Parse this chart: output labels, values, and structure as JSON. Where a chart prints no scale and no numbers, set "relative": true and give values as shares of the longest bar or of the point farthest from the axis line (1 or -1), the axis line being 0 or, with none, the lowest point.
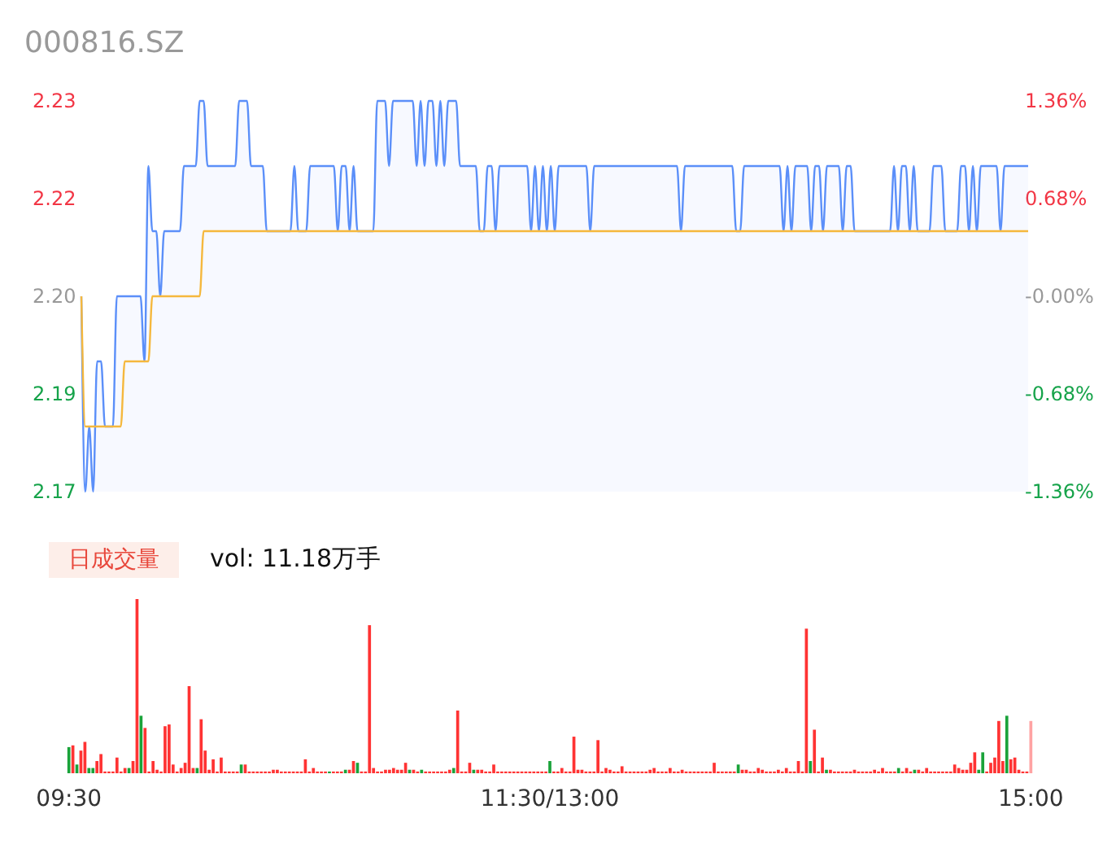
{
  "chart_data": [
    {
      "type": "line",
      "title": "000816.SZ",
      "categories": [
        null,
        null,
        null,
        null,
        null,
        null,
        null,
        null,
        null,
        null,
        null,
        null,
        null,
        null,
        null,
        null,
        null,
        null,
        null,
        null,
        null,
        null,
        null,
        null,
        null,
        null,
        null,
        null,
        null,
        null,
        null,
        null,
        null,
        null,
        null,
        null,
        null,
        null,
        null,
        null,
        null,
        null,
        null,
        null,
        null,
        null,
        null,
        null,
        null,
        null,
        null,
        null,
        null,
        null,
        null,
        null,
        null,
        null,
        null,
        null,
        null,
        null,
        null,
        null,
        null,
        null,
        null,
        null,
        null,
        null,
        null,
        null,
        null,
        null,
        null,
        null,
        null,
        null,
        null,
        null,
        null,
        null,
        null,
        null,
        null,
        null,
        null,
        null,
        null,
        null,
        null,
        null,
        null,
        null,
        null,
        null,
        null,
        null,
        null,
        null,
        null,
        null,
        null,
        null,
        null,
        null,
        null,
        null,
        null,
        null,
        null,
        null,
        null,
        null,
        null,
        null,
        null,
        null,
        null,
        null,
        null,
        null,
        null,
        null,
        null,
        null,
        null,
        null,
        null,
        null,
        null,
        null,
        null,
        null,
        null,
        null,
        null,
        null,
        null,
        null,
        null,
        null,
        null,
        null,
        null,
        null,
        null,
        null,
        null,
        null,
        null,
        null,
        null,
        null,
        null,
        null,
        null,
        null,
        null,
        null,
        null,
        null,
        null,
        null,
        null,
        null,
        null,
        null,
        null,
        null,
        null,
        null,
        null,
        null,
        null,
        null,
        null,
        null,
        null,
        null,
        null,
        null,
        null,
        null,
        null,
        null,
        null,
        null,
        null,
        null,
        null,
        null,
        null,
        null,
        null,
        null,
        null,
        null,
        null,
        null,
        null,
        null,
        null,
        null,
        null,
        null,
        null,
        null,
        null,
        null,
        null,
        null,
        null,
        null,
        null,
        null,
        null,
        null,
        null,
        null,
        null,
        null,
        null,
        null,
        null,
        null,
        null,
        null,
        null,
        null,
        null,
        null,
        null,
        null,
        null,
        null,
        null,
        null,
        null,
        null,
        null
      ],
      "series": [
        {
          "type": "area",
          "color": "#5b8ff9",
          "values": [
            2.2,
            2.17,
            2.18,
            2.17,
            2.19,
            2.19,
            2.18,
            2.18,
            2.18,
            2.2,
            2.2,
            2.2,
            2.2,
            2.2,
            2.2,
            2.2,
            2.19,
            2.22,
            2.21,
            2.21,
            2.2,
            2.21,
            2.21,
            2.21,
            2.21,
            2.21,
            2.22,
            2.22,
            2.22,
            2.22,
            2.23,
            2.23,
            2.22,
            2.22,
            2.22,
            2.22,
            2.22,
            2.22,
            2.22,
            2.22,
            2.23,
            2.23,
            2.23,
            2.22,
            2.22,
            2.22,
            2.22,
            2.21,
            2.21,
            2.21,
            2.21,
            2.21,
            2.21,
            2.21,
            2.22,
            2.21,
            2.21,
            2.21,
            2.22,
            2.22,
            2.22,
            2.22,
            2.22,
            2.22,
            2.22,
            2.21,
            2.22,
            2.22,
            2.21,
            2.22,
            2.21,
            2.21,
            2.21,
            2.21,
            2.21,
            2.23,
            2.23,
            2.23,
            2.22,
            2.23,
            2.23,
            2.23,
            2.23,
            2.23,
            2.23,
            2.22,
            2.23,
            2.22,
            2.23,
            2.23,
            2.22,
            2.23,
            2.22,
            2.23,
            2.23,
            2.23,
            2.22,
            2.22,
            2.22,
            2.22,
            2.22,
            2.21,
            2.21,
            2.22,
            2.22,
            2.21,
            2.22,
            2.22,
            2.22,
            2.22,
            2.22,
            2.22,
            2.22,
            2.22,
            2.21,
            2.22,
            2.21,
            2.22,
            2.21,
            2.22,
            2.21,
            2.22,
            2.22,
            2.22,
            2.22,
            2.22,
            2.22,
            2.22,
            2.22,
            2.21,
            2.22,
            2.22,
            2.22,
            2.22,
            2.22,
            2.22,
            2.22,
            2.22,
            2.22,
            2.22,
            2.22,
            2.22,
            2.22,
            2.22,
            2.22,
            2.22,
            2.22,
            2.22,
            2.22,
            2.22,
            2.22,
            2.22,
            2.21,
            2.22,
            2.22,
            2.22,
            2.22,
            2.22,
            2.22,
            2.22,
            2.22,
            2.22,
            2.22,
            2.22,
            2.22,
            2.22,
            2.21,
            2.21,
            2.22,
            2.22,
            2.22,
            2.22,
            2.22,
            2.22,
            2.22,
            2.22,
            2.22,
            2.22,
            2.21,
            2.22,
            2.21,
            2.22,
            2.22,
            2.22,
            2.22,
            2.21,
            2.22,
            2.22,
            2.21,
            2.22,
            2.22,
            2.22,
            2.22,
            2.21,
            2.22,
            2.22,
            2.21,
            2.21,
            2.21,
            2.21,
            2.21,
            2.21,
            2.21,
            2.21,
            2.21,
            2.21,
            2.22,
            2.21,
            2.22,
            2.22,
            2.21,
            2.22,
            2.21,
            2.21,
            2.21,
            2.21,
            2.22,
            2.22,
            2.22,
            2.21,
            2.21,
            2.21,
            2.21,
            2.22,
            2.22,
            2.21,
            2.22,
            2.21,
            2.22,
            2.22,
            2.22,
            2.22,
            2.22,
            2.21,
            2.22,
            2.22,
            2.22,
            2.22,
            2.22,
            2.22,
            2.22
          ]
        },
        {
          "type": "line",
          "color": "#f5b83d",
          "values": [
            2.2,
            2.18,
            2.18,
            2.18,
            2.18,
            2.18,
            2.18,
            2.18,
            2.18,
            2.18,
            2.18,
            2.19,
            2.19,
            2.19,
            2.19,
            2.19,
            2.19,
            2.19,
            2.2,
            2.2,
            2.2,
            2.2,
            2.2,
            2.2,
            2.2,
            2.2,
            2.2,
            2.2,
            2.2,
            2.2,
            2.2,
            2.21,
            2.21,
            2.21,
            2.21,
            2.21,
            2.21,
            2.21,
            2.21,
            2.21,
            2.21,
            2.21,
            2.21,
            2.21,
            2.21,
            2.21,
            2.21,
            2.21,
            2.21,
            2.21,
            2.21,
            2.21,
            2.21,
            2.21,
            2.21,
            2.21,
            2.21,
            2.21,
            2.21,
            2.21,
            2.21,
            2.21,
            2.21,
            2.21,
            2.21,
            2.21,
            2.21,
            2.21,
            2.21,
            2.21,
            2.21,
            2.21,
            2.21,
            2.21,
            2.21,
            2.21,
            2.21,
            2.21,
            2.21,
            2.21,
            2.21,
            2.21,
            2.21,
            2.21,
            2.21,
            2.21,
            2.21,
            2.21,
            2.21,
            2.21,
            2.21,
            2.21,
            2.21,
            2.21,
            2.21,
            2.21,
            2.21,
            2.21,
            2.21,
            2.21,
            2.21,
            2.21,
            2.21,
            2.21,
            2.21,
            2.21,
            2.21,
            2.21,
            2.21,
            2.21,
            2.21,
            2.21,
            2.21,
            2.21,
            2.21,
            2.21,
            2.21,
            2.21,
            2.21,
            2.21,
            2.21,
            2.21,
            2.21,
            2.21,
            2.21,
            2.21,
            2.21,
            2.21,
            2.21,
            2.21,
            2.21,
            2.21,
            2.21,
            2.21,
            2.21,
            2.21,
            2.21,
            2.21,
            2.21,
            2.21,
            2.21,
            2.21,
            2.21,
            2.21,
            2.21,
            2.21,
            2.21,
            2.21,
            2.21,
            2.21,
            2.21,
            2.21,
            2.21,
            2.21,
            2.21,
            2.21,
            2.21,
            2.21,
            2.21,
            2.21,
            2.21,
            2.21,
            2.21,
            2.21,
            2.21,
            2.21,
            2.21,
            2.21,
            2.21,
            2.21,
            2.21,
            2.21,
            2.21,
            2.21,
            2.21,
            2.21,
            2.21,
            2.21,
            2.21,
            2.21,
            2.21,
            2.21,
            2.21,
            2.21,
            2.21,
            2.21,
            2.21,
            2.21,
            2.21,
            2.21,
            2.21,
            2.21,
            2.21,
            2.21,
            2.21,
            2.21,
            2.21,
            2.21,
            2.21,
            2.21,
            2.21,
            2.21,
            2.21,
            2.21,
            2.21,
            2.21,
            2.21,
            2.21,
            2.21,
            2.21,
            2.21,
            2.21,
            2.21,
            2.21,
            2.21,
            2.21,
            2.21,
            2.21,
            2.21,
            2.21,
            2.21,
            2.21,
            2.21,
            2.21,
            2.21,
            2.21,
            2.21,
            2.21,
            2.21,
            2.21,
            2.21,
            2.21,
            2.21,
            2.21,
            2.21,
            2.21,
            2.21,
            2.21,
            2.21,
            2.21,
            2.21
          ]
        }
      ],
      "ylim": [
        2.17,
        2.23
      ],
      "yticks": [
        2.23,
        {
          "value": 2.215,
          "label": "2.22"
        },
        {
          "value": 2.2,
          "label": "2.20"
        },
        {
          "value": 2.185,
          "label": "2.19"
        },
        2.17
      ],
      "y2lim": [
        -1.36,
        1.36
      ],
      "y2ticks": [
        {
          "value": 1.36,
          "label": "1.36%"
        },
        {
          "value": 0.68,
          "label": "0.68%"
        },
        {
          "value": 0,
          "label": "-0.00%"
        },
        {
          "value": -0.68,
          "label": "-0.68%"
        },
        {
          "value": -1.36,
          "label": "-1.36%"
        }
      ],
      "tick_labels": "y"
    },
    {
      "type": "bar",
      "title": "日成交量",
      "subtitle": "vol: 11.18万手",
      "relative": true,
      "categories": [
        "09:30",
        null,
        null,
        null,
        null,
        null,
        null,
        null,
        null,
        null,
        null,
        null,
        null,
        null,
        null,
        null,
        null,
        null,
        null,
        null,
        null,
        null,
        null,
        null,
        null,
        null,
        null,
        null,
        null,
        null,
        null,
        null,
        null,
        null,
        null,
        null,
        null,
        null,
        null,
        null,
        null,
        null,
        null,
        null,
        null,
        null,
        null,
        null,
        null,
        null,
        null,
        null,
        null,
        null,
        null,
        null,
        null,
        null,
        null,
        null,
        null,
        null,
        null,
        null,
        null,
        null,
        null,
        null,
        null,
        null,
        null,
        null,
        null,
        null,
        null,
        null,
        null,
        null,
        null,
        null,
        null,
        null,
        null,
        null,
        null,
        null,
        null,
        null,
        null,
        null,
        null,
        null,
        null,
        null,
        null,
        null,
        null,
        null,
        null,
        null,
        null,
        null,
        null,
        null,
        null,
        null,
        null,
        null,
        null,
        null,
        null,
        null,
        null,
        null,
        null,
        null,
        null,
        null,
        null,
        null,
        "11:30/13:00",
        null,
        null,
        null,
        null,
        null,
        null,
        null,
        null,
        null,
        null,
        null,
        null,
        null,
        null,
        null,
        null,
        null,
        null,
        null,
        null,
        null,
        null,
        null,
        null,
        null,
        null,
        null,
        null,
        null,
        null,
        null,
        null,
        null,
        null,
        null,
        null,
        null,
        null,
        null,
        null,
        null,
        null,
        null,
        null,
        null,
        null,
        null,
        null,
        null,
        null,
        null,
        null,
        null,
        null,
        null,
        null,
        null,
        null,
        null,
        null,
        null,
        null,
        null,
        null,
        null,
        null,
        null,
        null,
        null,
        null,
        null,
        null,
        null,
        null,
        null,
        null,
        null,
        null,
        null,
        null,
        null,
        null,
        null,
        null,
        null,
        null,
        null,
        null,
        null,
        null,
        null,
        null,
        null,
        null,
        null,
        null,
        null,
        null,
        null,
        null,
        null,
        null,
        null,
        null,
        null,
        null,
        null,
        null,
        null,
        null,
        null,
        null,
        null,
        null,
        null,
        null,
        null,
        null,
        null,
        "15:00"
      ],
      "values": [
        0.15,
        0.16,
        0.05,
        0.13,
        0.18,
        0.03,
        0.03,
        0.07,
        0.11,
        0.01,
        0.01,
        0.01,
        0.09,
        0.01,
        0.03,
        0.03,
        0.07,
        1,
        0.33,
        0.26,
        0.01,
        0.07,
        0.02,
        0.01,
        0.27,
        0.28,
        0.05,
        0.01,
        0.03,
        0.06,
        0.5,
        0.03,
        0.03,
        0.31,
        0.13,
        0.02,
        0.08,
        0.01,
        0.09,
        0.01,
        0.01,
        0.01,
        0.01,
        0.05,
        0.05,
        0.01,
        0.01,
        0.01,
        0.01,
        0.01,
        0.01,
        0.02,
        0.02,
        0.01,
        0.01,
        0.01,
        0.01,
        0.01,
        0.01,
        0.08,
        0.01,
        0.03,
        0.01,
        0.01,
        0.01,
        0.01,
        0.01,
        0.01,
        0.01,
        0.02,
        0.02,
        0.07,
        0.06,
        0.01,
        0.01,
        0.85,
        0.03,
        0.01,
        0.01,
        0.02,
        0.02,
        0.03,
        0.02,
        0.02,
        0.06,
        0.02,
        0.02,
        0.01,
        0.02,
        0.01,
        0.01,
        0.01,
        0.01,
        0.01,
        0.01,
        0.02,
        0.03,
        0.36,
        0.01,
        0.01,
        0.06,
        0.02,
        0.02,
        0.02,
        0.01,
        0.01,
        0.05,
        0.01,
        0.01,
        0.01,
        0.01,
        0.01,
        0.01,
        0.01,
        0.01,
        0.01,
        0.01,
        0.01,
        0.01,
        0.01,
        0.07,
        0.01,
        0.01,
        0.03,
        0.01,
        0.01,
        0.21,
        0.02,
        0.02,
        0.01,
        0.01,
        0.01,
        0.19,
        0.01,
        0.03,
        0.02,
        0.01,
        0.01,
        0.04,
        0.01,
        0.01,
        0.01,
        0.01,
        0.01,
        0.01,
        0.02,
        0.03,
        0.01,
        0.01,
        0.01,
        0.03,
        0.01,
        0.01,
        0.02,
        0.01,
        0.01,
        0.01,
        0.01,
        0.01,
        0.01,
        0.01,
        0.06,
        0.01,
        0.01,
        0.01,
        0.01,
        0.01,
        0.05,
        0.02,
        0.02,
        0.01,
        0.01,
        0.03,
        0.02,
        0.01,
        0.01,
        0.01,
        0.02,
        0.01,
        0.03,
        0.01,
        0.01,
        0.07,
        0.01,
        0.83,
        0.07,
        0.25,
        0.01,
        0.09,
        0.02,
        0.02,
        0.01,
        0.01,
        0.01,
        0.01,
        0.01,
        0.02,
        0.01,
        0.01,
        0.01,
        0.01,
        0.02,
        0.01,
        0.03,
        0.01,
        0.01,
        0.01,
        0.03,
        0.01,
        0.03,
        0.01,
        0.02,
        0.02,
        0.01,
        0.03,
        0.01,
        0.01,
        0.01,
        0.01,
        0.01,
        0.01,
        0.05,
        0.03,
        0.02,
        0.02,
        0.06,
        0.12,
        0.02,
        0.12,
        0.01,
        0.06,
        0.09,
        0.3,
        0.07,
        0.33,
        0.08,
        0.09,
        0.02,
        0.01,
        0.01,
        0.3
      ],
      "colors": [
        "#1aa33a",
        "#ff3333",
        "#1aa33a",
        "#ff3333",
        "#ff3333",
        "#1aa33a",
        "#1aa33a",
        "#ff3333",
        "#ff3333",
        "#ff3333",
        "#ff3333",
        "#ff3333",
        "#ff3333",
        "#ff3333",
        "#ff3333",
        "#1aa33a",
        "#ff3333",
        "#ff3333",
        "#1aa33a",
        "#ff3333",
        "#ff3333",
        "#ff3333",
        "#ff3333",
        "#ff3333",
        "#ff3333",
        "#ff3333",
        "#ff3333",
        "#ff3333",
        "#ff3333",
        "#ff3333",
        "#ff3333",
        "#ff3333",
        "#1aa33a",
        "#ff3333",
        "#ff3333",
        "#ff3333",
        "#ff3333",
        "#ff3333",
        "#ff3333",
        "#ff3333",
        "#ff3333",
        "#ff3333",
        "#ff3333",
        "#1aa33a",
        "#ff3333",
        "#ff3333",
        "#ff3333",
        "#ff3333",
        "#ff3333",
        "#ff3333",
        "#ff3333",
        "#ff3333",
        "#ff3333",
        "#ff3333",
        "#ff3333",
        "#ff3333",
        "#ff3333",
        "#ff3333",
        "#ff3333",
        "#ff3333",
        "#ff3333",
        "#ff3333",
        "#ff3333",
        "#ff3333",
        "#ff3333",
        "#1aa33a",
        "#ff3333",
        "#ff3333",
        "#ff3333",
        "#1aa33a",
        "#ff3333",
        "#ff3333",
        "#1aa33a",
        "#ff3333",
        "#ff3333",
        "#ff3333",
        "#ff3333",
        "#ff3333",
        "#ff3333",
        "#ff3333",
        "#ff3333",
        "#ff3333",
        "#ff3333",
        "#ff3333",
        "#ff3333",
        "#1aa33a",
        "#ff3333",
        "#ff3333",
        "#1aa33a",
        "#ff3333",
        "#ff3333",
        "#ff3333",
        "#ff3333",
        "#ff3333",
        "#ff3333",
        "#ff3333",
        "#1aa33a",
        "#ff3333",
        "#ff3333",
        "#ff3333",
        "#ff3333",
        "#1aa33a",
        "#ff3333",
        "#ff3333",
        "#ff3333",
        "#ff3333",
        "#ff3333",
        "#ff3333",
        "#ff3333",
        "#ff3333",
        "#ff3333",
        "#ff3333",
        "#ff3333",
        "#ff3333",
        "#ff3333",
        "#ff3333",
        "#ff3333",
        "#ff3333",
        "#ff3333",
        "#ff3333",
        "#1aa33a",
        "#ff3333",
        "#ff3333",
        "#ff3333",
        "#ff3333",
        "#ff3333",
        "#ff3333",
        "#ff3333",
        "#ff3333",
        "#ff3333",
        "#ff3333",
        "#ff3333",
        "#ff3333",
        "#ff3333",
        "#ff3333",
        "#ff3333",
        "#ff3333",
        "#ff3333",
        "#ff3333",
        "#ff3333",
        "#ff3333",
        "#ff3333",
        "#ff3333",
        "#ff3333",
        "#ff3333",
        "#ff3333",
        "#ff3333",
        "#ff3333",
        "#ff3333",
        "#ff3333",
        "#ff3333",
        "#ff3333",
        "#ff3333",
        "#ff3333",
        "#ff3333",
        "#ff3333",
        "#ff3333",
        "#ff3333",
        "#ff3333",
        "#ff3333",
        "#ff3333",
        "#ff3333",
        "#ff3333",
        "#ff3333",
        "#ff3333",
        "#ff3333",
        "#ff3333",
        "#1aa33a",
        "#ff3333",
        "#ff3333",
        "#ff3333",
        "#ff3333",
        "#ff3333",
        "#ff3333",
        "#ff3333",
        "#ff3333",
        "#ff3333",
        "#ff3333",
        "#ff3333",
        "#ff3333",
        "#ff3333",
        "#ff3333",
        "#ff3333",
        "#ff3333",
        "#ff3333",
        "#1aa33a",
        "#ff3333",
        "#ff3333",
        "#ff3333",
        "#1aa33a",
        "#ff3333",
        "#ff3333",
        "#ff3333",
        "#ff3333",
        "#ff3333",
        "#ff3333",
        "#ff3333",
        "#ff3333",
        "#ff3333",
        "#ff3333",
        "#ff3333",
        "#ff3333",
        "#ff3333",
        "#ff3333",
        "#ff3333",
        "#ff3333",
        "#ff3333",
        "#1aa33a",
        "#ff3333",
        "#ff3333",
        "#ff3333",
        "#1aa33a",
        "#ff3333",
        "#ff3333",
        "#ff3333",
        "#ff3333",
        "#ff3333",
        "#ff3333",
        "#ff3333",
        "#ff3333",
        "#ff3333",
        "#ff3333",
        "#ff3333",
        "#ff3333",
        "#ff3333",
        "#ff3333",
        "#ff3333",
        "#1aa33a",
        "#1aa33a",
        "#ff3333",
        "#ff3333",
        "#ff3333",
        "#ff3333",
        "#ff3333",
        "#1aa33a",
        "#ff3333",
        "#ff3333",
        "#ff3333",
        "#ff3333",
        "#ff3333",
        "#ffa3a3"
      ],
      "tick_labels": "x"
    }
  ]
}
